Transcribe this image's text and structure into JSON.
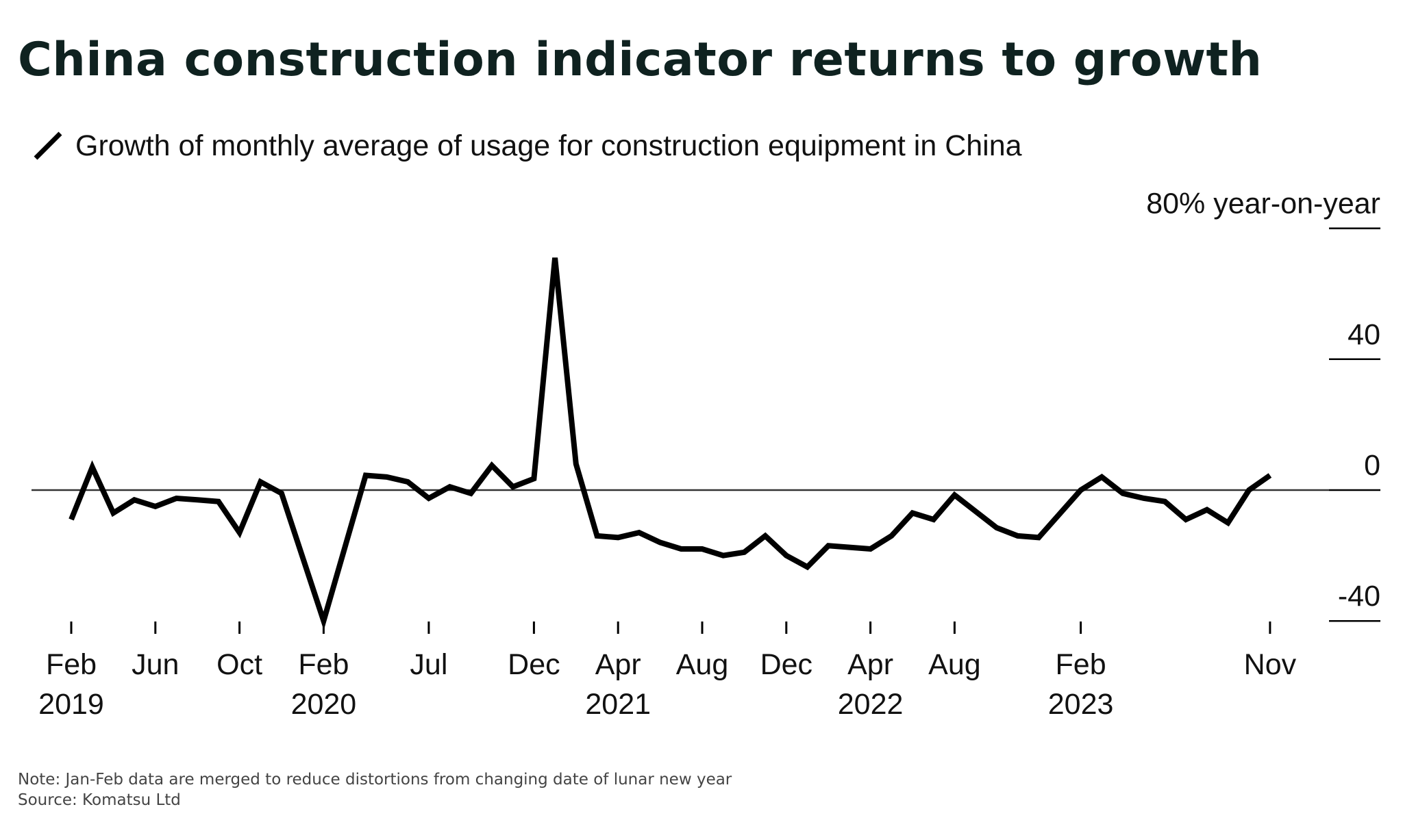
{
  "title": "China construction indicator returns to growth",
  "legend": {
    "icon": "diagonal-line-icon",
    "label": "Growth of monthly average of usage for construction equipment in China"
  },
  "note": "Note: Jan-Feb data are merged to reduce distortions from changing date of lunar new year",
  "source": "Source: Komatsu Ltd",
  "colors": {
    "line": "#000000",
    "zero_line": "#333333",
    "title": "#0f2220"
  },
  "chart_data": {
    "type": "line",
    "ylabel_top": "80% year-on-year",
    "ylim": [
      -40,
      80
    ],
    "yticks": [
      {
        "value": 80,
        "label": "80% year-on-year"
      },
      {
        "value": 40,
        "label": "40"
      },
      {
        "value": 0,
        "label": "0"
      },
      {
        "value": -40,
        "label": "-40"
      }
    ],
    "xticks": [
      {
        "x": 0,
        "label": "Feb",
        "year": "2019"
      },
      {
        "x": 4,
        "label": "Jun",
        "year": ""
      },
      {
        "x": 8,
        "label": "Oct",
        "year": ""
      },
      {
        "x": 12,
        "label": "Feb",
        "year": "2020"
      },
      {
        "x": 17,
        "label": "Jul",
        "year": ""
      },
      {
        "x": 22,
        "label": "Dec",
        "year": ""
      },
      {
        "x": 26,
        "label": "Apr",
        "year": "2021"
      },
      {
        "x": 30,
        "label": "Aug",
        "year": ""
      },
      {
        "x": 34,
        "label": "Dec",
        "year": ""
      },
      {
        "x": 38,
        "label": "Apr",
        "year": "2022"
      },
      {
        "x": 42,
        "label": "Aug",
        "year": ""
      },
      {
        "x": 48,
        "label": "Feb",
        "year": "2023"
      },
      {
        "x": 57,
        "label": "Nov",
        "year": ""
      }
    ],
    "series": [
      {
        "x": [
          0,
          1,
          2,
          3,
          4,
          5,
          6,
          7,
          8,
          9,
          10,
          12,
          14,
          15,
          16,
          17,
          18,
          19,
          20,
          21,
          22,
          23,
          24,
          25,
          26,
          27,
          28,
          29,
          30,
          31,
          32,
          33,
          34,
          35,
          36,
          37,
          38,
          39,
          40,
          41,
          42,
          43,
          44,
          45,
          46,
          48,
          49,
          50,
          51,
          52,
          53,
          54,
          55,
          56,
          57
        ],
        "values": [
          -9,
          7,
          -7,
          -3,
          -5,
          -2.5,
          -3,
          -3.5,
          -13,
          2.5,
          -1,
          -40,
          4.5,
          4,
          2.5,
          -2.5,
          1,
          -1,
          7.5,
          1,
          3.5,
          71,
          8,
          -14,
          -14.5,
          -13,
          -16,
          -18,
          -18,
          -20,
          -19,
          -14,
          -20,
          -23.5,
          -17,
          -17.5,
          -18,
          -14,
          -7,
          -9,
          -1.5,
          -6.5,
          -11.5,
          -14,
          -14.5,
          0,
          4,
          -1,
          -2.5,
          -3.5,
          -9,
          -6,
          -10,
          0,
          4.5
        ]
      }
    ]
  }
}
